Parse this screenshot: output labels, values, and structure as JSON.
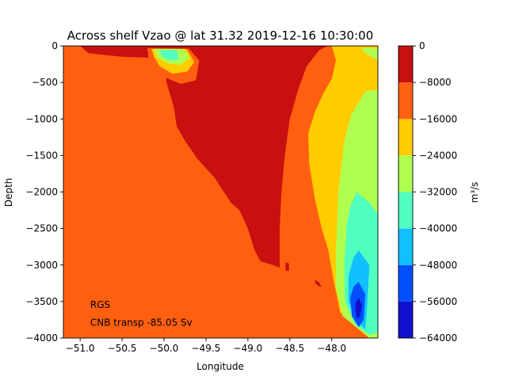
{
  "chart_data": {
    "type": "heatmap",
    "subtype": "filled-contour",
    "title": "Across shelf Vzao @ lat 31.32 2019-12-16 10:30:00",
    "xlabel": "Longitude",
    "ylabel": "Depth",
    "xlim": [
      -51.2,
      -47.45
    ],
    "ylim": [
      -4000,
      0
    ],
    "x_ticks": [
      {
        "value": -51.0,
        "label": "−51.0"
      },
      {
        "value": -50.5,
        "label": "−50.5"
      },
      {
        "value": -50.0,
        "label": "−50.0"
      },
      {
        "value": -49.5,
        "label": "−49.5"
      },
      {
        "value": -49.0,
        "label": "−49.0"
      },
      {
        "value": -48.5,
        "label": "−48.5"
      },
      {
        "value": -48.0,
        "label": "−48.0"
      }
    ],
    "y_ticks": [
      {
        "value": 0,
        "label": "0"
      },
      {
        "value": -500,
        "label": "−500"
      },
      {
        "value": -1000,
        "label": "−1000"
      },
      {
        "value": -1500,
        "label": "−1500"
      },
      {
        "value": -2000,
        "label": "−2000"
      },
      {
        "value": -2500,
        "label": "−2500"
      },
      {
        "value": -3000,
        "label": "−3000"
      },
      {
        "value": -3500,
        "label": "−3500"
      },
      {
        "value": -4000,
        "label": "−4000"
      }
    ],
    "colorbar": {
      "label": "m³/s",
      "levels": [
        -64000,
        -56000,
        -48000,
        -40000,
        -32000,
        -24000,
        -16000,
        -8000,
        0
      ],
      "tick_labels": [
        "−64000",
        "−56000",
        "−48000",
        "−40000",
        "−32000",
        "−24000",
        "−16000",
        "−8000",
        "0"
      ],
      "colors": [
        "#1010cc",
        "#0050ff",
        "#10c0ff",
        "#50ffc0",
        "#b0ff50",
        "#ffcc00",
        "#ff6010",
        "#c81010"
      ]
    },
    "regions": [
      {
        "level_index": 6,
        "points": [
          [
            -51.2,
            0
          ],
          [
            -47.45,
            0
          ],
          [
            -47.45,
            -4000
          ],
          [
            -51.2,
            -4000
          ]
        ]
      },
      {
        "level_index": 7,
        "points": [
          [
            -51.0,
            0
          ],
          [
            -48.05,
            0
          ],
          [
            -48.15,
            -60
          ],
          [
            -48.3,
            -280
          ],
          [
            -48.4,
            -600
          ],
          [
            -48.5,
            -1000
          ],
          [
            -48.56,
            -1500
          ],
          [
            -48.6,
            -2000
          ],
          [
            -48.62,
            -2500
          ],
          [
            -48.62,
            -3040
          ],
          [
            -48.7,
            -3000
          ],
          [
            -48.85,
            -2950
          ],
          [
            -48.92,
            -2800
          ],
          [
            -49.0,
            -2500
          ],
          [
            -49.1,
            -2250
          ],
          [
            -49.2,
            -2150
          ],
          [
            -49.4,
            -1800
          ],
          [
            -49.6,
            -1550
          ],
          [
            -49.75,
            -1300
          ],
          [
            -49.85,
            -1100
          ],
          [
            -49.88,
            -850
          ],
          [
            -49.97,
            -500
          ],
          [
            -49.98,
            -350
          ],
          [
            -50.05,
            -250
          ],
          [
            -50.2,
            -160
          ],
          [
            -50.5,
            -150
          ],
          [
            -50.9,
            -100
          ],
          [
            -51.0,
            0
          ]
        ]
      },
      {
        "level_index": 7,
        "points": [
          [
            -48.55,
            -2960
          ],
          [
            -48.51,
            -2980
          ],
          [
            -48.51,
            -3080
          ],
          [
            -48.55,
            -3080
          ]
        ]
      },
      {
        "level_index": 7,
        "points": [
          [
            -48.2,
            -3200
          ],
          [
            -48.15,
            -3240
          ],
          [
            -48.12,
            -3300
          ],
          [
            -48.17,
            -3280
          ],
          [
            -48.2,
            -3240
          ]
        ]
      },
      {
        "level_index": 6,
        "points": [
          [
            -50.2,
            -30
          ],
          [
            -49.7,
            -40
          ],
          [
            -49.58,
            -200
          ],
          [
            -49.62,
            -470
          ],
          [
            -49.8,
            -520
          ],
          [
            -50.05,
            -400
          ],
          [
            -50.18,
            -200
          ]
        ]
      },
      {
        "level_index": 5,
        "points": [
          [
            -50.15,
            -40
          ],
          [
            -49.73,
            -40
          ],
          [
            -49.64,
            -220
          ],
          [
            -49.72,
            -350
          ],
          [
            -49.9,
            -380
          ],
          [
            -50.05,
            -280
          ],
          [
            -50.12,
            -150
          ]
        ]
      },
      {
        "level_index": 4,
        "points": [
          [
            -50.12,
            -40
          ],
          [
            -49.77,
            -40
          ],
          [
            -49.69,
            -160
          ],
          [
            -49.8,
            -260
          ],
          [
            -49.95,
            -240
          ],
          [
            -50.08,
            -160
          ]
        ]
      },
      {
        "level_index": 3,
        "points": [
          [
            -50.05,
            -60
          ],
          [
            -49.85,
            -60
          ],
          [
            -49.82,
            -180
          ],
          [
            -49.92,
            -200
          ],
          [
            -50.02,
            -150
          ]
        ]
      },
      {
        "level_index": 5,
        "points": [
          [
            -48.0,
            0
          ],
          [
            -47.45,
            0
          ],
          [
            -47.45,
            -4000
          ],
          [
            -47.55,
            -4000
          ],
          [
            -47.9,
            -3650
          ],
          [
            -47.98,
            -3200
          ],
          [
            -48.04,
            -2800
          ],
          [
            -48.12,
            -2500
          ],
          [
            -48.2,
            -2100
          ],
          [
            -48.27,
            -1600
          ],
          [
            -48.28,
            -1200
          ],
          [
            -48.2,
            -900
          ],
          [
            -48.1,
            -650
          ],
          [
            -48.0,
            -450
          ],
          [
            -47.95,
            -200
          ]
        ]
      },
      {
        "level_index": 4,
        "points": [
          [
            -47.65,
            -30
          ],
          [
            -47.45,
            -30
          ],
          [
            -47.45,
            -4000
          ],
          [
            -47.55,
            -4000
          ],
          [
            -47.87,
            -3700
          ],
          [
            -47.95,
            -3300
          ],
          [
            -47.95,
            -2800
          ],
          [
            -47.92,
            -2000
          ],
          [
            -47.85,
            -1300
          ],
          [
            -47.77,
            -950
          ],
          [
            -47.6,
            -620
          ],
          [
            -47.45,
            -600
          ],
          [
            -47.45,
            -200
          ],
          [
            -47.6,
            -100
          ]
        ]
      },
      {
        "level_index": 3,
        "points": [
          [
            -47.7,
            -2000
          ],
          [
            -47.55,
            -2150
          ],
          [
            -47.45,
            -2300
          ],
          [
            -47.45,
            -3920
          ],
          [
            -47.55,
            -3960
          ],
          [
            -47.73,
            -3800
          ],
          [
            -47.84,
            -3500
          ],
          [
            -47.85,
            -3000
          ],
          [
            -47.82,
            -2450
          ],
          [
            -47.78,
            -2200
          ]
        ]
      },
      {
        "level_index": 2,
        "points": [
          [
            -47.68,
            -2800
          ],
          [
            -47.55,
            -3000
          ],
          [
            -47.58,
            -3600
          ],
          [
            -47.6,
            -3880
          ],
          [
            -47.72,
            -3760
          ],
          [
            -47.8,
            -3500
          ],
          [
            -47.8,
            -3150
          ],
          [
            -47.74,
            -2900
          ]
        ]
      },
      {
        "level_index": 1,
        "points": [
          [
            -47.68,
            -3230
          ],
          [
            -47.6,
            -3400
          ],
          [
            -47.62,
            -3750
          ],
          [
            -47.68,
            -3850
          ],
          [
            -47.76,
            -3700
          ],
          [
            -47.78,
            -3450
          ],
          [
            -47.74,
            -3300
          ]
        ]
      },
      {
        "level_index": 0,
        "points": [
          [
            -47.68,
            -3450
          ],
          [
            -47.64,
            -3550
          ],
          [
            -47.66,
            -3700
          ],
          [
            -47.7,
            -3740
          ],
          [
            -47.72,
            -3600
          ],
          [
            -47.71,
            -3500
          ]
        ]
      }
    ],
    "annotations": [
      {
        "text": "RGS",
        "x": -50.88,
        "y": -3590
      },
      {
        "text": "CNB transp -85.05 Sv",
        "x": -50.88,
        "y": -3830
      }
    ]
  }
}
